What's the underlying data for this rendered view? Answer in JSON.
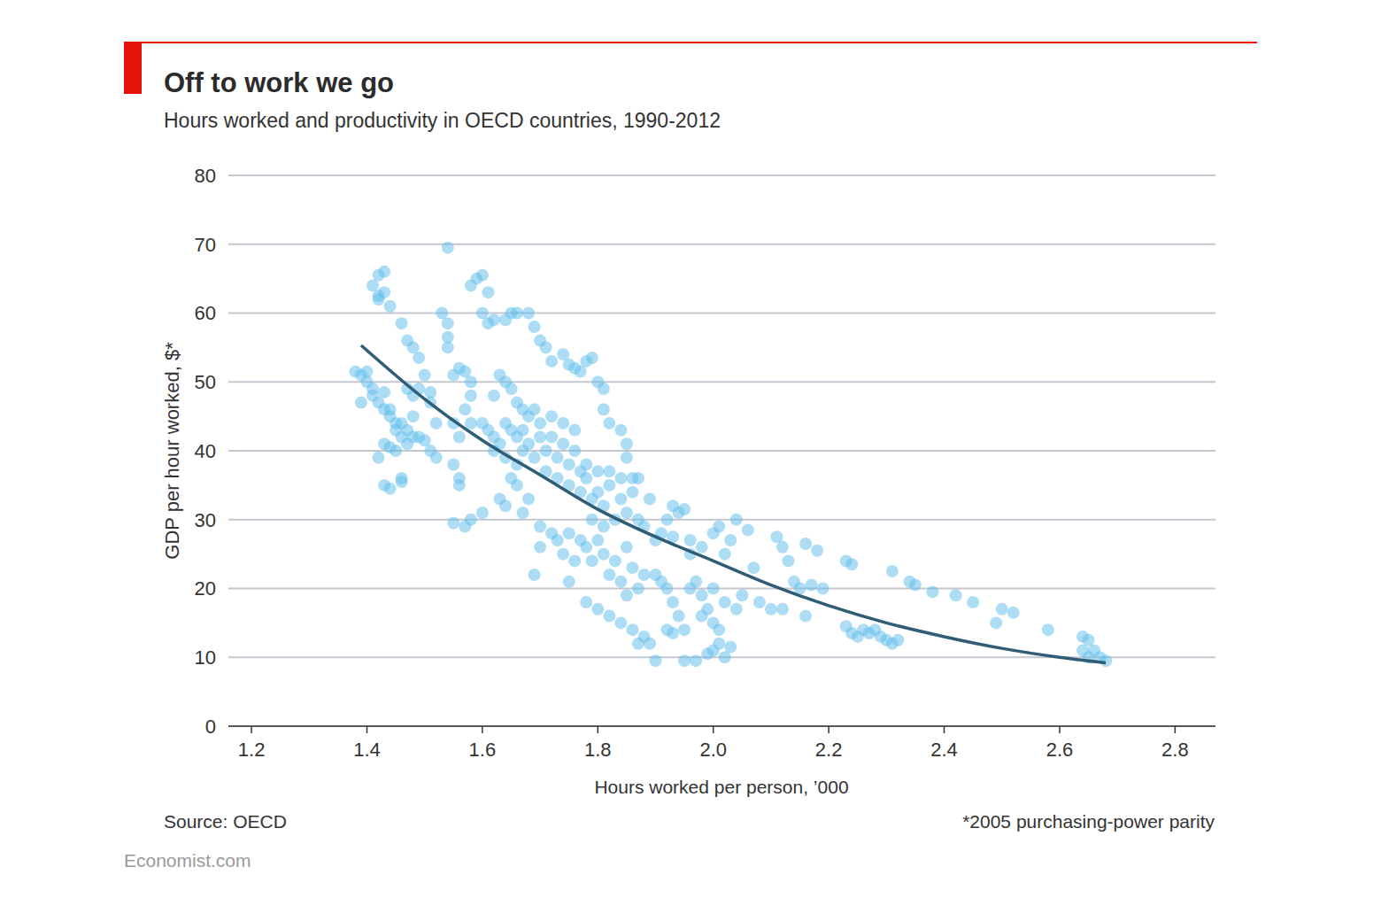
{
  "chart_data": {
    "type": "scatter",
    "title": "Off to work we go",
    "subtitle": "Hours worked and productivity in OECD countries, 1990-2012",
    "x_label": "Hours worked per person, ’000",
    "y_label": "GDP per hour worked, $*",
    "source": "Source: OECD",
    "note": "*2005 purchasing-power parity",
    "credit": "Economist.com",
    "xlim": [
      1.16,
      2.87
    ],
    "xticks": [
      1.2,
      1.4,
      1.6,
      1.8,
      {
        "value": 2,
        "label": "2.0"
      },
      2.2,
      2.4,
      2.6,
      2.8
    ],
    "ylim": [
      0,
      80
    ],
    "yticks": [
      0,
      10,
      20,
      30,
      40,
      50,
      60,
      70,
      80
    ],
    "grid": true,
    "series": [
      {
        "type": "scatter",
        "color": "#5bbcec",
        "marker": "circle",
        "x": [
          1.38,
          1.39,
          1.39,
          1.4,
          1.4,
          1.41,
          1.41,
          1.42,
          1.43,
          1.43,
          1.44,
          1.44,
          1.45,
          1.45,
          1.46,
          1.46,
          1.47,
          1.47,
          1.48,
          1.48,
          1.44,
          1.45,
          1.42,
          1.43,
          1.43,
          1.44,
          1.46,
          1.46,
          1.49,
          1.5,
          1.51,
          1.52,
          1.48,
          1.49,
          1.47,
          1.51,
          1.52,
          1.55,
          1.41,
          1.42,
          1.42,
          1.43,
          1.43,
          1.44,
          1.42,
          1.46,
          1.47,
          1.48,
          1.49,
          1.5,
          1.51,
          1.54,
          1.53,
          1.54,
          1.54,
          1.54,
          1.55,
          1.56,
          1.57,
          1.58,
          1.58,
          1.57,
          1.58,
          1.56,
          1.55,
          1.56,
          1.56,
          1.55,
          1.57,
          1.58,
          1.6,
          1.58,
          1.59,
          1.6,
          1.61,
          1.6,
          1.61,
          1.62,
          1.64,
          1.65,
          1.66,
          1.68,
          1.69,
          1.7,
          1.71,
          1.72,
          1.74,
          1.75,
          1.76,
          1.77,
          1.78,
          1.79,
          1.8,
          1.81,
          1.81,
          1.82,
          1.84,
          1.85,
          1.85,
          1.6,
          1.61,
          1.62,
          1.62,
          1.63,
          1.64,
          1.64,
          1.65,
          1.66,
          1.66,
          1.67,
          1.67,
          1.68,
          1.68,
          1.69,
          1.69,
          1.7,
          1.7,
          1.71,
          1.71,
          1.72,
          1.72,
          1.73,
          1.73,
          1.74,
          1.74,
          1.75,
          1.75,
          1.76,
          1.76,
          1.77,
          1.77,
          1.78,
          1.78,
          1.79,
          1.79,
          1.8,
          1.8,
          1.81,
          1.81,
          1.82,
          1.82,
          1.83,
          1.84,
          1.84,
          1.85,
          1.86,
          1.86,
          1.87,
          1.62,
          1.63,
          1.64,
          1.65,
          1.66,
          1.67,
          1.63,
          1.64,
          1.66,
          1.67,
          1.68,
          1.65,
          1.7,
          1.7,
          1.69,
          1.72,
          1.73,
          1.74,
          1.75,
          1.76,
          1.77,
          1.78,
          1.79,
          1.8,
          1.81,
          1.82,
          1.83,
          1.84,
          1.85,
          1.86,
          1.87,
          1.88,
          1.75,
          1.78,
          1.8,
          1.82,
          1.84,
          1.86,
          1.87,
          1.88,
          1.89,
          1.9,
          1.85,
          1.9,
          1.91,
          1.92,
          1.93,
          1.94,
          1.95,
          1.92,
          1.93,
          1.95,
          1.97,
          1.99,
          2,
          2.01,
          2.02,
          2.03,
          1.96,
          1.97,
          1.98,
          1.99,
          2,
          2.01,
          1.98,
          2,
          2.02,
          2.04,
          2.05,
          1.88,
          1.9,
          1.92,
          1.93,
          1.94,
          1.95,
          1.93,
          1.96,
          1.98,
          2,
          2.01,
          2.03,
          2.04,
          2.06,
          2.02,
          1.87,
          1.89,
          1.91,
          1.96,
          2.07,
          2.08,
          2.1,
          2.11,
          2.12,
          2.13,
          2.14,
          2.15,
          2.16,
          2.17,
          2.18,
          2.19,
          2.12,
          2.16,
          2.23,
          2.24,
          2.23,
          2.24,
          2.25,
          2.26,
          2.27,
          2.28,
          2.29,
          2.3,
          2.31,
          2.32,
          2.31,
          2.34,
          2.35,
          2.38,
          2.42,
          2.45,
          2.49,
          2.5,
          2.52,
          2.58,
          2.64,
          2.65,
          2.66,
          2.64,
          2.67,
          2.68,
          2.65
        ],
        "values": [
          51.5,
          51,
          47,
          50,
          51.5,
          49,
          48,
          47,
          46,
          48.5,
          45,
          46,
          44,
          43,
          42,
          44,
          43,
          41,
          42,
          45,
          40.5,
          40,
          39,
          41,
          35,
          34.5,
          36,
          35.5,
          42,
          41.5,
          40,
          39,
          48,
          49,
          49,
          47,
          44,
          44,
          64,
          62,
          65.5,
          66,
          63,
          61,
          62.5,
          58.5,
          56,
          55,
          53.5,
          51,
          48.5,
          69.5,
          60,
          58.5,
          56.5,
          55,
          51,
          52,
          51.5,
          50,
          48,
          46,
          44,
          42,
          38,
          36,
          35,
          29.5,
          29,
          30,
          31,
          64,
          65,
          65.5,
          63,
          60,
          58.5,
          59,
          59,
          60,
          60,
          60,
          58,
          56,
          55,
          53,
          54,
          52.5,
          52,
          51.5,
          53,
          53.5,
          50,
          49,
          46,
          44,
          43,
          41,
          39,
          44,
          43,
          42,
          40,
          41,
          39,
          44,
          43,
          42,
          38,
          40,
          43,
          45,
          41,
          39,
          46,
          44,
          42,
          40,
          37,
          45,
          42,
          39,
          36,
          44,
          41,
          38,
          35,
          43,
          40,
          37,
          34,
          38,
          36,
          33,
          30,
          37,
          34,
          32,
          29,
          37,
          35,
          30,
          36,
          33,
          31,
          36,
          34,
          30,
          48,
          51,
          50,
          49,
          47,
          46,
          33,
          32,
          35,
          31,
          33,
          36,
          29,
          26,
          22,
          28,
          27,
          25,
          28,
          24,
          27,
          26,
          24,
          27,
          25,
          22,
          24,
          21,
          26,
          23,
          20,
          22,
          21,
          18,
          17,
          16,
          15,
          14,
          12,
          13,
          12,
          9.5,
          19,
          22,
          21,
          20,
          18,
          16,
          14,
          14,
          13.5,
          9.5,
          9.5,
          10.5,
          11,
          12,
          10,
          11.5,
          20,
          21,
          19,
          17,
          15,
          14,
          16,
          20,
          18,
          17,
          19,
          29,
          27,
          30,
          32,
          31,
          31.5,
          27.5,
          25,
          26,
          28,
          29,
          27,
          30,
          28.5,
          25,
          36,
          33,
          28,
          27,
          23,
          18,
          17,
          27.5,
          26,
          24,
          21,
          20,
          16,
          20.5,
          25.5,
          20,
          17,
          26.5,
          24,
          23.5,
          14.5,
          13.5,
          13,
          14,
          13.5,
          14,
          13,
          12.5,
          12,
          12.5,
          22.5,
          21,
          20.5,
          19.5,
          19,
          18,
          15,
          17,
          16.5,
          14,
          13,
          12.5,
          11,
          11,
          10,
          9.5,
          10
        ]
      },
      {
        "type": "line",
        "color": "#2f5d75",
        "line_style": "solid",
        "x": [
          1.39,
          1.5,
          1.6,
          1.7,
          1.8,
          1.9,
          2,
          2.1,
          2.2,
          2.3,
          2.4,
          2.5,
          2.6,
          2.68
        ],
        "values": [
          55.3,
          47.5,
          41.5,
          36.5,
          31.5,
          27.5,
          24,
          20.5,
          17.5,
          15,
          13,
          11.3,
          10,
          9.2
        ]
      }
    ]
  }
}
